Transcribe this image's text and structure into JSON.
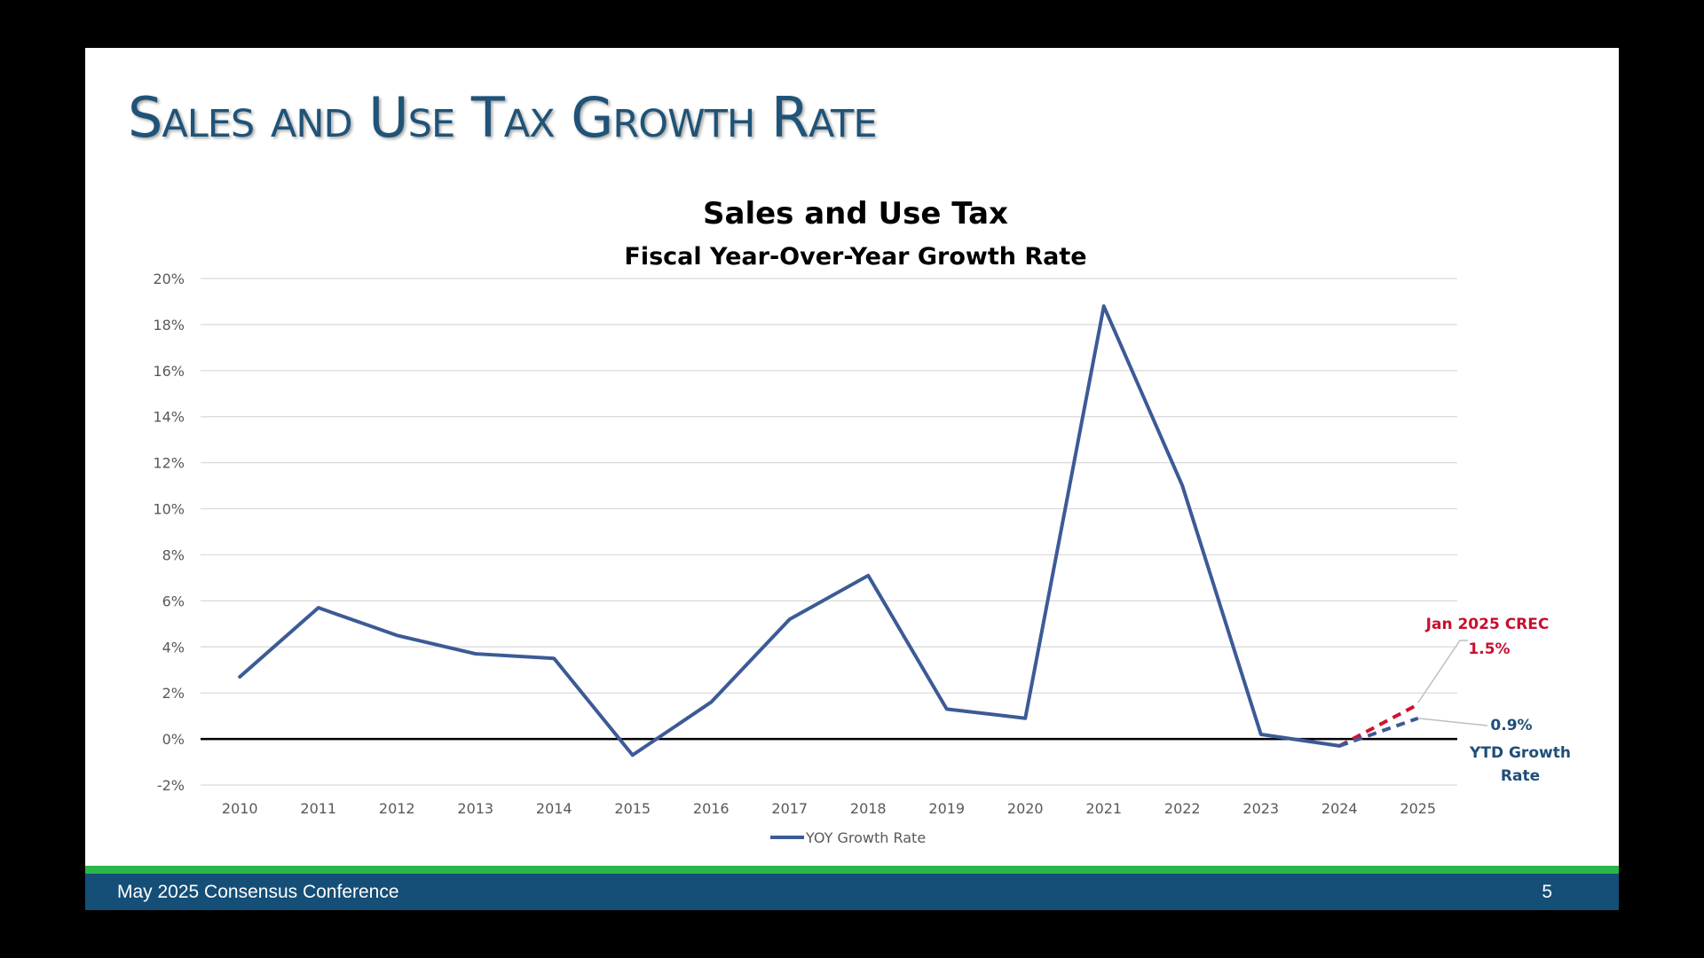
{
  "slide": {
    "title": "Sales and Use Tax Growth Rate",
    "footer_text": "May 2025 Consensus Conference",
    "page_number": "5"
  },
  "colors": {
    "title": "#1f5378",
    "footer_bar": "#154e76",
    "footer_stripe": "#2bb64a",
    "series_line": "#3c5a96",
    "forecast_red": "#d0132d",
    "ytd_blue": "#3c5a96",
    "annotation_red": "#c8102e",
    "annotation_blue": "#1f4e79"
  },
  "chart_data": {
    "type": "line",
    "title": "Sales and Use Tax",
    "subtitle": "Fiscal Year-Over-Year Growth Rate",
    "x": [
      "2010",
      "2011",
      "2012",
      "2013",
      "2014",
      "2015",
      "2016",
      "2017",
      "2018",
      "2019",
      "2020",
      "2021",
      "2022",
      "2023",
      "2024",
      "2025"
    ],
    "ylim": [
      -2,
      20
    ],
    "yticks": [
      -2,
      0,
      2,
      4,
      6,
      8,
      10,
      12,
      14,
      16,
      18,
      20
    ],
    "ytick_labels": [
      "-2%",
      "0%",
      "2%",
      "4%",
      "6%",
      "8%",
      "10%",
      "12%",
      "14%",
      "16%",
      "18%",
      "20%"
    ],
    "grid": true,
    "legend_position": "bottom",
    "series": [
      {
        "name": "YOY Growth Rate",
        "x": [
          "2010",
          "2011",
          "2012",
          "2013",
          "2014",
          "2015",
          "2016",
          "2017",
          "2018",
          "2019",
          "2020",
          "2021",
          "2022",
          "2023",
          "2024"
        ],
        "values": [
          2.7,
          5.7,
          4.5,
          3.7,
          3.5,
          -0.7,
          1.6,
          5.2,
          7.1,
          1.3,
          0.9,
          18.8,
          11.0,
          0.2,
          -0.3
        ]
      },
      {
        "x": [
          "2024",
          "2025"
        ],
        "values": [
          -0.3,
          1.5
        ],
        "style": "dashed",
        "color": "forecast_red"
      },
      {
        "x": [
          "2024",
          "2025"
        ],
        "values": [
          -0.3,
          0.9
        ],
        "style": "dashed",
        "color": "ytd_blue"
      }
    ],
    "annotations": {
      "crec_label": "Jan 2025 CREC",
      "crec_value": "1.5%",
      "ytd_value": "0.9%",
      "ytd_label_line1": "YTD Growth",
      "ytd_label_line2": "Rate"
    }
  }
}
